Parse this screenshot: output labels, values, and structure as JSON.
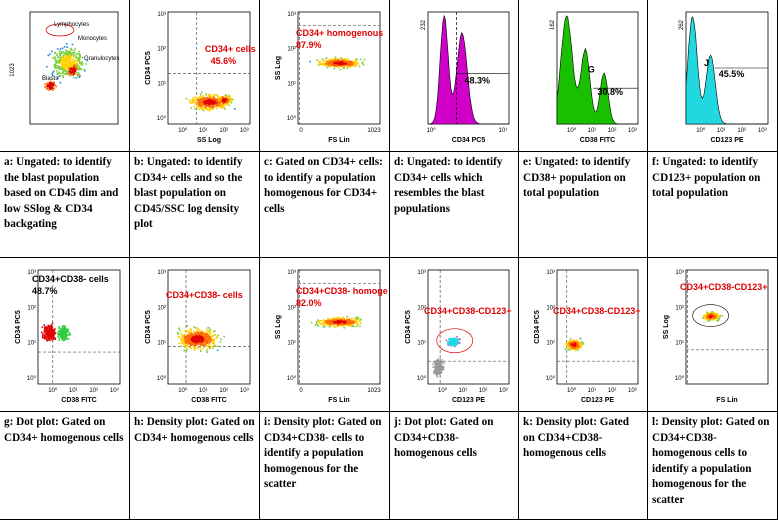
{
  "row1": {
    "panels": [
      {
        "id": "a",
        "gate_labels": [
          "Lymphocytes",
          "Monocytes",
          "Granulocytes",
          "Blasts"
        ],
        "y_ticks": [
          "1023"
        ]
      },
      {
        "id": "b",
        "ylabel": "CD34 PC5",
        "xlabel": "SS Log",
        "gate_label": "CD34+ cells",
        "percent": "45.6%",
        "y_ticks": [
          "10³",
          "10²",
          "10¹",
          "10⁰"
        ],
        "x_ticks": [
          "10⁰",
          "10¹",
          "10²",
          "10³"
        ]
      },
      {
        "id": "c",
        "ylabel": "SS Log",
        "xlabel": "FS Lin",
        "gate_label": "CD34+ homogenous",
        "percent": "87.9%",
        "y_ticks": [
          "10³",
          "10²",
          "10¹",
          "10⁰"
        ],
        "x_ticks": [
          "0",
          "1023"
        ]
      },
      {
        "id": "d",
        "xlabel": "CD34 PC5",
        "y_max": "232",
        "percent": "48.3%",
        "x_ticks": [
          "10⁰",
          "10¹"
        ]
      },
      {
        "id": "e",
        "xlabel": "CD38 FITC",
        "y_max": "162",
        "gate": "G",
        "percent": "30.8%",
        "x_ticks": [
          "10⁰",
          "10¹",
          "10²",
          "10³"
        ]
      },
      {
        "id": "f",
        "xlabel": "CD123 PE",
        "y_max": "262",
        "gate": "J",
        "percent": "45.5%",
        "x_ticks": [
          "10⁰",
          "10¹",
          "10²",
          "10³"
        ]
      }
    ],
    "captions": [
      {
        "letter": "a:",
        "text": "Ungated: to identify the blast population based on CD45 dim and low SSlog & CD34 backgating"
      },
      {
        "letter": "b:",
        "text": "Ungated: to identify CD34+ cells and so the blast population on CD45/SSC log density plot"
      },
      {
        "letter": "c:",
        "text": "Gated on CD34+ cells: to identify a population homogenous for CD34+ cells"
      },
      {
        "letter": "d:",
        "text": "Ungated: to identify CD34+ cells which resembles the blast populations"
      },
      {
        "letter": "e:",
        "text": "Ungated: to identify CD38+ population on total population"
      },
      {
        "letter": "f:",
        "text": "Ungated: to identify CD123+ population on total population"
      }
    ]
  },
  "row2": {
    "panels": [
      {
        "id": "g",
        "ylabel": "CD34 PC5",
        "xlabel": "CD38 FITC",
        "gate_label": "CD34+CD38- cells",
        "percent": "48.7%",
        "y_ticks": [
          "10³",
          "10²",
          "10¹",
          "10⁰"
        ],
        "x_ticks": [
          "10⁰",
          "10¹",
          "10²",
          "10³"
        ]
      },
      {
        "id": "h",
        "ylabel": "CD34 PC5",
        "xlabel": "CD38 FITC",
        "gate_label": "CD34+CD38- cells",
        "y_ticks": [
          "10³",
          "10²",
          "10¹",
          "10⁰"
        ],
        "x_ticks": [
          "10⁰",
          "10¹",
          "10²",
          "10³"
        ]
      },
      {
        "id": "i",
        "ylabel": "SS Log",
        "xlabel": "FS Lin",
        "gate_label": "CD34+CD38- homoge",
        "percent": "82.0%",
        "y_ticks": [
          "10³",
          "10²",
          "10¹",
          "10⁰"
        ],
        "x_ticks": [
          "0",
          "1023"
        ]
      },
      {
        "id": "j",
        "ylabel": "CD34 PC5",
        "xlabel": "CD123 PE",
        "gate_label": "CD34+CD38-CD123+",
        "y_ticks": [
          "10³",
          "10²",
          "10¹",
          "10⁰"
        ],
        "x_ticks": [
          "10⁰",
          "10¹",
          "10²",
          "10³"
        ]
      },
      {
        "id": "k",
        "ylabel": "CD34 PC5",
        "xlabel": "CD123 PE",
        "gate_label": "CD34+CD38-CD123+",
        "y_ticks": [
          "10³",
          "10²",
          "10¹",
          "10⁰"
        ],
        "x_ticks": [
          "10⁰",
          "10¹",
          "10²",
          "10³"
        ]
      },
      {
        "id": "l",
        "ylabel": "SS Log",
        "xlabel": "FS Lin",
        "gate_label": "CD34+CD38-CD123+",
        "y_ticks": [
          "10³",
          "10²",
          "10¹",
          "10⁰"
        ],
        "x_ticks": []
      }
    ],
    "captions": [
      {
        "letter": "g:",
        "text": "Dot plot: Gated on CD34+ homogenous cells"
      },
      {
        "letter": "h:",
        "text": "Density plot: Gated on CD34+ homogenous cells"
      },
      {
        "letter": "i:",
        "text": "Density plot: Gated on CD34+CD38-   cells to identify a population homogenous for the scatter"
      },
      {
        "letter": "j:",
        "text": "Dot plot: Gated on CD34+CD38- homogenous cells"
      },
      {
        "letter": "k:",
        "text": "Density plot: Gated on CD34+CD38- homogenous cells"
      },
      {
        "letter": "l:",
        "text": "Density plot: Gated on CD34+CD38- homogenous cells to identify a population homogenous for the scatter"
      }
    ]
  },
  "colors": {
    "gate_text": "#e00000",
    "grid_line": "#000000"
  }
}
